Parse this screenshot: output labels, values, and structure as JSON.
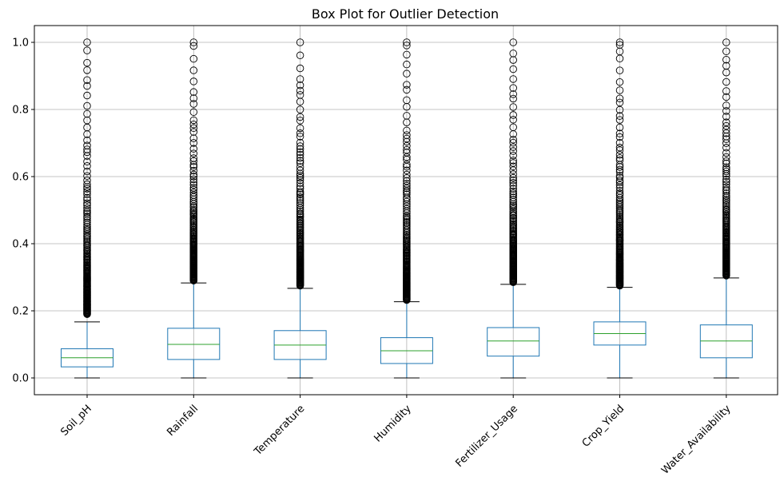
{
  "chart_data": {
    "type": "box",
    "title": "Box Plot for Outlier Detection",
    "xlabel": "",
    "ylabel": "",
    "ylim": [
      -0.05,
      1.05
    ],
    "yticks": [
      0.0,
      0.2,
      0.4,
      0.6,
      0.8,
      1.0
    ],
    "ytick_labels": [
      "0.0",
      "0.2",
      "0.4",
      "0.6",
      "0.8",
      "1.0"
    ],
    "grid": true,
    "colors": {
      "box": "#1f77b4",
      "median": "#2ca02c",
      "grid": "#b0b0b0",
      "flier": "#000000"
    },
    "categories": [
      "Soil_pH",
      "Rainfall",
      "Temperature",
      "Humidity",
      "Fertilizer_Usage",
      "Crop_Yield",
      "Water_Availability"
    ],
    "boxes": [
      {
        "name": "Soil_pH",
        "whisker_low": 0.0,
        "q1": 0.033,
        "median": 0.06,
        "q3": 0.087,
        "whisker_high": 0.167,
        "outlier_range": [
          0.19,
          1.0
        ]
      },
      {
        "name": "Rainfall",
        "whisker_low": 0.0,
        "q1": 0.055,
        "median": 0.1,
        "q3": 0.148,
        "whisker_high": 0.283,
        "outlier_range": [
          0.29,
          1.0
        ]
      },
      {
        "name": "Temperature",
        "whisker_low": 0.0,
        "q1": 0.055,
        "median": 0.098,
        "q3": 0.141,
        "whisker_high": 0.267,
        "outlier_range": [
          0.275,
          1.0
        ]
      },
      {
        "name": "Humidity",
        "whisker_low": 0.0,
        "q1": 0.043,
        "median": 0.081,
        "q3": 0.12,
        "whisker_high": 0.227,
        "outlier_range": [
          0.232,
          1.0
        ]
      },
      {
        "name": "Fertilizer_Usage",
        "whisker_low": 0.0,
        "q1": 0.065,
        "median": 0.11,
        "q3": 0.15,
        "whisker_high": 0.279,
        "outlier_range": [
          0.285,
          1.0
        ]
      },
      {
        "name": "Crop_Yield",
        "whisker_low": 0.0,
        "q1": 0.098,
        "median": 0.132,
        "q3": 0.167,
        "whisker_high": 0.27,
        "outlier_range": [
          0.275,
          1.0
        ]
      },
      {
        "name": "Water_Availability",
        "whisker_low": 0.0,
        "q1": 0.06,
        "median": 0.11,
        "q3": 0.158,
        "whisker_high": 0.298,
        "outlier_range": [
          0.305,
          1.0
        ]
      }
    ]
  }
}
